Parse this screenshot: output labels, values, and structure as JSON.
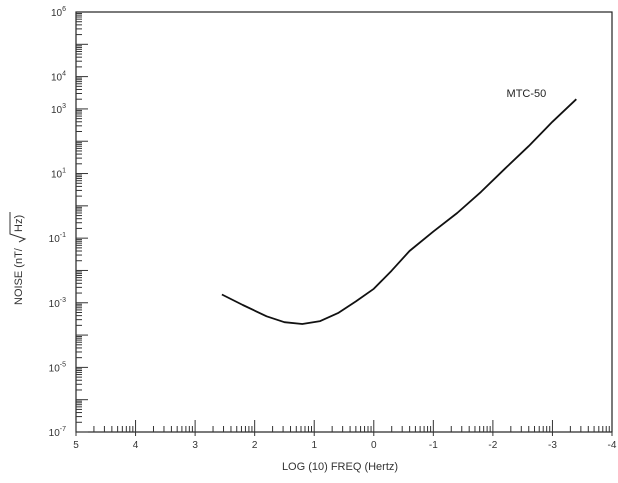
{
  "chart_data": {
    "type": "line",
    "title": "",
    "xlabel": "LOG (10) FREQ (Hertz)",
    "ylabel_prefix": "NOISE (nT/",
    "ylabel_root": "Hz",
    "ylabel_suffix": ")",
    "x_reversed": true,
    "xlim": [
      5,
      -4
    ],
    "y_scale": "log",
    "ylim": [
      1e-07,
      1000000.0
    ],
    "x_ticks": [
      {
        "value": 5,
        "label": "5"
      },
      {
        "value": 4,
        "label": "4"
      },
      {
        "value": 3,
        "label": "3"
      },
      {
        "value": 2,
        "label": "2"
      },
      {
        "value": 1,
        "label": "1"
      },
      {
        "value": 0,
        "label": "0"
      },
      {
        "value": -1,
        "label": "-1"
      },
      {
        "value": -2,
        "label": "-2"
      },
      {
        "value": -3,
        "label": "-3"
      },
      {
        "value": -4,
        "label": "-4"
      }
    ],
    "y_ticks": [
      {
        "value": 1e-07,
        "base": "10",
        "exp": "-7"
      },
      {
        "value": 1e-05,
        "base": "10",
        "exp": "-5"
      },
      {
        "value": 0.001,
        "base": "10",
        "exp": "-3"
      },
      {
        "value": 0.1,
        "base": "10",
        "exp": "-1"
      },
      {
        "value": 10.0,
        "base": "10",
        "exp": "1"
      },
      {
        "value": 1000.0,
        "base": "10",
        "exp": "3"
      },
      {
        "value": 10000.0,
        "base": "10",
        "exp": "4"
      },
      {
        "value": 1000000.0,
        "base": "10",
        "exp": "6"
      }
    ],
    "series": [
      {
        "name": "MTC-50",
        "color": "#111111",
        "x": [
          2.55,
          2.2,
          1.8,
          1.5,
          1.2,
          0.9,
          0.6,
          0.3,
          0.0,
          -0.3,
          -0.6,
          -1.0,
          -1.4,
          -1.8,
          -2.2,
          -2.6,
          -3.0,
          -3.4
        ],
        "y": [
          0.0018,
          0.00085,
          0.00038,
          0.00025,
          0.00022,
          0.00027,
          0.00048,
          0.0011,
          0.0027,
          0.0098,
          0.04,
          0.16,
          0.6,
          2.7,
          14,
          70,
          400,
          2000
        ]
      }
    ]
  }
}
